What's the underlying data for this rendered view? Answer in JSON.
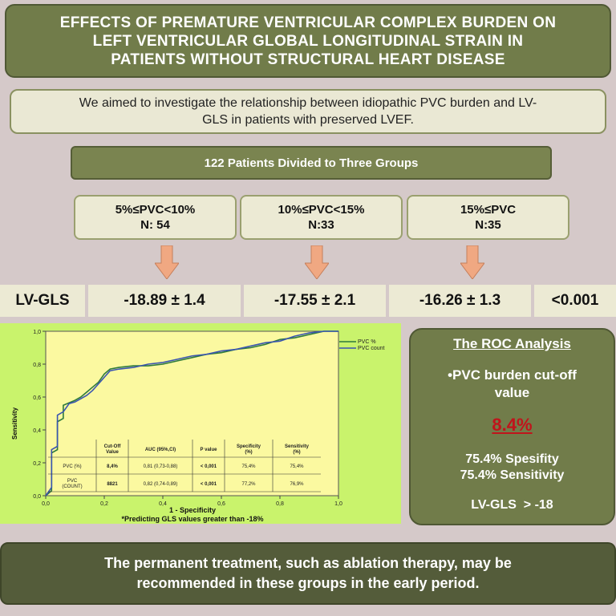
{
  "title": {
    "line1": "EFFECTS OF PREMATURE VENTRICULAR COMPLEX BURDEN ON",
    "line2": "LEFT VENTRICULAR GLOBAL LONGITUDINAL STRAIN IN",
    "line3": "PATIENTS WITHOUT STRUCTURAL HEART DISEASE"
  },
  "aim": {
    "line1": "We aimed to investigate the relationship between idiopathic PVC burden and LV-",
    "line2": "GLS in patients with preserved LVEF."
  },
  "groups_header": "122 Patients Divided to Three Groups",
  "groups": [
    {
      "range": "5%≤PVC<10%",
      "n": "N: 54"
    },
    {
      "range": "10%≤PVC<15%",
      "n": "N:33"
    },
    {
      "range": "15%≤PVC",
      "n": "N:35"
    }
  ],
  "arrow_color": "#f0a882",
  "gls_row": {
    "label": "LV-GLS",
    "values": [
      "-18.89 ± 1.4",
      "-17.55 ± 2.1",
      "-16.26 ± 1.3"
    ],
    "p_value": "<0.001"
  },
  "roc_chart": {
    "ylabel": "Sensitivity",
    "xlabel": "1 - Specificity",
    "footnote": "*Predicting GLS values greater than -18%",
    "y_ticks": [
      "0,0",
      "0,2",
      "0,4",
      "0,6",
      "0,8",
      "1,0"
    ],
    "x_ticks": [
      "0,0",
      "0,2",
      "0,4",
      "0,6",
      "0,8",
      "1,0"
    ],
    "legend": [
      "PVC %",
      "PVC count"
    ],
    "table": {
      "headers": [
        "",
        "Cut-Off Value",
        "AUC (95%,CI)",
        "P value",
        "Specificity (%)",
        "Sensitivity (%)"
      ],
      "rows": [
        [
          "PVC (%)",
          "8,4%",
          "0,81 (0,73-0,88)",
          "< 0,001",
          "75,4%",
          "75,4%"
        ],
        [
          "PVC (COUNT)",
          "8821",
          "0,82 (0,74-0,89)",
          "< 0,001",
          "77,2%",
          "76,9%"
        ]
      ]
    }
  },
  "chart_data": {
    "type": "line",
    "xlabel": "1 - Specificity",
    "ylabel": "Sensitivity",
    "xlim": [
      0,
      1
    ],
    "ylim": [
      0,
      1
    ],
    "legend_position": "top-right",
    "series": [
      {
        "name": "PVC %",
        "color": "#2e7a3d",
        "x": [
          0,
          0.02,
          0.02,
          0.04,
          0.04,
          0.06,
          0.06,
          0.1,
          0.12,
          0.14,
          0.16,
          0.18,
          0.2,
          0.22,
          0.25,
          0.3,
          0.35,
          0.4,
          0.45,
          0.5,
          0.55,
          0.6,
          0.65,
          0.7,
          0.75,
          0.8,
          0.85,
          0.9,
          0.95,
          1.0
        ],
        "y": [
          0,
          0.03,
          0.26,
          0.28,
          0.45,
          0.47,
          0.55,
          0.58,
          0.6,
          0.63,
          0.66,
          0.69,
          0.74,
          0.77,
          0.78,
          0.79,
          0.79,
          0.8,
          0.82,
          0.84,
          0.86,
          0.87,
          0.89,
          0.9,
          0.92,
          0.95,
          0.96,
          0.98,
          1.0,
          1.0
        ]
      },
      {
        "name": "PVC count",
        "color": "#3a55b0",
        "x": [
          0,
          0.02,
          0.02,
          0.04,
          0.04,
          0.06,
          0.08,
          0.1,
          0.12,
          0.14,
          0.16,
          0.18,
          0.2,
          0.22,
          0.25,
          0.3,
          0.35,
          0.4,
          0.45,
          0.5,
          0.55,
          0.6,
          0.65,
          0.7,
          0.75,
          0.8,
          0.85,
          0.9,
          0.95,
          1.0
        ],
        "y": [
          0,
          0.05,
          0.28,
          0.3,
          0.49,
          0.51,
          0.56,
          0.57,
          0.59,
          0.61,
          0.64,
          0.68,
          0.72,
          0.76,
          0.77,
          0.78,
          0.8,
          0.81,
          0.83,
          0.85,
          0.86,
          0.88,
          0.89,
          0.91,
          0.93,
          0.94,
          0.97,
          0.99,
          1.0,
          1.0
        ]
      }
    ]
  },
  "roc_analysis": {
    "title": "The ROC Analysis",
    "line1": "•PVC burden cut-off",
    "line2": "value",
    "cutoff": "8.4%",
    "cutoff_color": "#c0141b",
    "spec": "75.4% Spesifity",
    "sens": "75.4% Sensitivity",
    "gls": "LV-GLS  > -18"
  },
  "conclusion": {
    "line1": "The permanent treatment, such as ablation therapy, may be",
    "line2": "recommended in these groups in the early period."
  }
}
